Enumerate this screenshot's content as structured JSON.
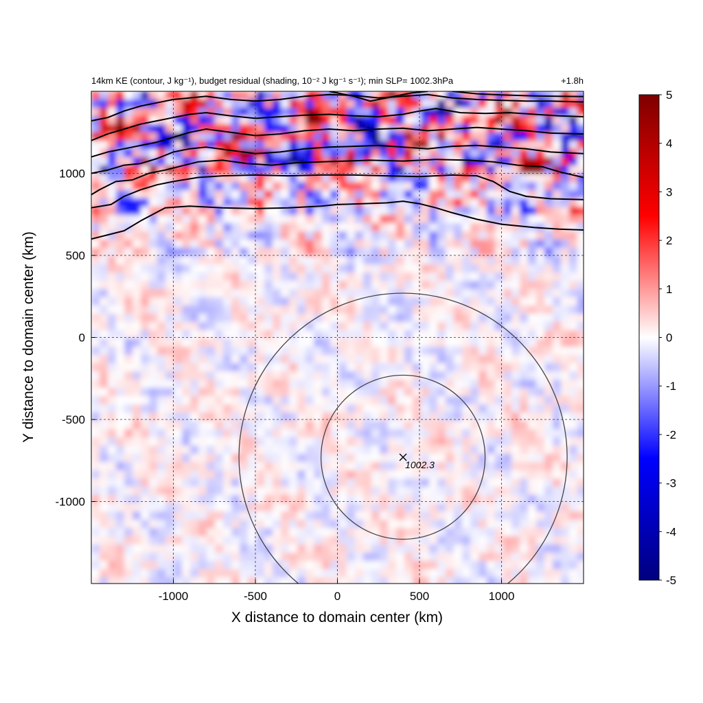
{
  "chart_data": {
    "type": "heatmap",
    "title_left": "14km KE (contour, J kg⁻¹), budget residual (shading, 10⁻² J kg⁻¹ s⁻¹); min SLP= 1002.3hPa",
    "title_right": "+1.8h",
    "xlabel": "X distance to domain center (km)",
    "ylabel": "Y distance to domain center (km)",
    "xlim": [
      -1500,
      1500
    ],
    "ylim": [
      -1500,
      1500
    ],
    "x_ticks": [
      -1000,
      -500,
      0,
      500,
      1000
    ],
    "y_ticks": [
      1000,
      500,
      0,
      -500,
      -1000
    ],
    "grid": true,
    "colorbar": {
      "range": [
        -5,
        5
      ],
      "ticks": [
        5,
        4,
        3,
        2,
        1,
        0,
        -1,
        -2,
        -3,
        -4,
        -5
      ],
      "colors": [
        "#00007f",
        "#0000ff",
        "#ffffff",
        "#ff0000",
        "#7f0000"
      ]
    },
    "center": {
      "x": 400,
      "y": -730,
      "label": "1002.3"
    },
    "circles_radius_km": [
      500,
      1000
    ],
    "ke_contours": [
      [
        [
          -1500,
          600
        ],
        [
          -1300,
          650
        ],
        [
          -1200,
          710
        ],
        [
          -1050,
          790
        ],
        [
          -900,
          800
        ],
        [
          -700,
          790
        ],
        [
          -500,
          785
        ],
        [
          -300,
          790
        ],
        [
          -100,
          800
        ],
        [
          0,
          810
        ],
        [
          150,
          815
        ],
        [
          300,
          820
        ],
        [
          400,
          830
        ],
        [
          500,
          815
        ],
        [
          600,
          790
        ],
        [
          700,
          760
        ],
        [
          850,
          720
        ],
        [
          1000,
          690
        ],
        [
          1200,
          670
        ],
        [
          1350,
          660
        ],
        [
          1500,
          655
        ]
      ],
      [
        [
          -1500,
          790
        ],
        [
          -1380,
          810
        ],
        [
          -1300,
          860
        ],
        [
          -1200,
          900
        ],
        [
          -1100,
          930
        ],
        [
          -1000,
          950
        ],
        [
          -850,
          975
        ],
        [
          -700,
          985
        ],
        [
          -500,
          990
        ],
        [
          -300,
          985
        ],
        [
          -100,
          990
        ],
        [
          100,
          990
        ],
        [
          300,
          985
        ],
        [
          500,
          980
        ],
        [
          700,
          990
        ],
        [
          850,
          985
        ],
        [
          950,
          950
        ],
        [
          1050,
          890
        ],
        [
          1150,
          860
        ],
        [
          1300,
          845
        ],
        [
          1500,
          840
        ]
      ],
      [
        [
          -1500,
          870
        ],
        [
          -1450,
          900
        ],
        [
          -1350,
          950
        ],
        [
          -1250,
          960
        ],
        [
          -1150,
          1000
        ],
        [
          -1050,
          1020
        ],
        [
          -950,
          1045
        ],
        [
          -850,
          1070
        ],
        [
          -700,
          1080
        ],
        [
          -550,
          1060
        ],
        [
          -400,
          1050
        ],
        [
          -250,
          1065
        ],
        [
          -100,
          1070
        ],
        [
          50,
          1075
        ],
        [
          200,
          1080
        ],
        [
          400,
          1075
        ],
        [
          600,
          1085
        ],
        [
          800,
          1080
        ],
        [
          950,
          1070
        ],
        [
          1100,
          1050
        ],
        [
          1250,
          1040
        ],
        [
          1350,
          1010
        ],
        [
          1500,
          975
        ]
      ],
      [
        [
          -1500,
          1000
        ],
        [
          -1400,
          1020
        ],
        [
          -1300,
          1050
        ],
        [
          -1200,
          1060
        ],
        [
          -1100,
          1090
        ],
        [
          -1000,
          1130
        ],
        [
          -900,
          1150
        ],
        [
          -800,
          1160
        ],
        [
          -650,
          1140
        ],
        [
          -500,
          1120
        ],
        [
          -350,
          1130
        ],
        [
          -200,
          1150
        ],
        [
          -50,
          1160
        ],
        [
          100,
          1165
        ],
        [
          250,
          1170
        ],
        [
          400,
          1160
        ],
        [
          550,
          1150
        ],
        [
          700,
          1165
        ],
        [
          850,
          1170
        ],
        [
          1000,
          1160
        ],
        [
          1150,
          1150
        ],
        [
          1300,
          1130
        ],
        [
          1500,
          1120
        ]
      ],
      [
        [
          -1500,
          1100
        ],
        [
          -1400,
          1130
        ],
        [
          -1300,
          1150
        ],
        [
          -1200,
          1170
        ],
        [
          -1100,
          1190
        ],
        [
          -1000,
          1220
        ],
        [
          -900,
          1250
        ],
        [
          -800,
          1270
        ],
        [
          -650,
          1250
        ],
        [
          -500,
          1230
        ],
        [
          -350,
          1240
        ],
        [
          -200,
          1260
        ],
        [
          -50,
          1270
        ],
        [
          100,
          1260
        ],
        [
          250,
          1270
        ],
        [
          400,
          1275
        ],
        [
          550,
          1260
        ],
        [
          700,
          1270
        ],
        [
          850,
          1280
        ],
        [
          1000,
          1270
        ],
        [
          1150,
          1260
        ],
        [
          1300,
          1245
        ],
        [
          1500,
          1240
        ]
      ],
      [
        [
          -1500,
          1200
        ],
        [
          -1400,
          1240
        ],
        [
          -1300,
          1270
        ],
        [
          -1200,
          1300
        ],
        [
          -1100,
          1320
        ],
        [
          -1000,
          1340
        ],
        [
          -900,
          1360
        ],
        [
          -800,
          1370
        ],
        [
          -650,
          1350
        ],
        [
          -500,
          1335
        ],
        [
          -350,
          1345
        ],
        [
          -200,
          1355
        ],
        [
          -50,
          1360
        ],
        [
          100,
          1350
        ],
        [
          250,
          1345
        ],
        [
          400,
          1360
        ],
        [
          500,
          1380
        ],
        [
          600,
          1395
        ],
        [
          750,
          1370
        ],
        [
          900,
          1365
        ],
        [
          1050,
          1370
        ],
        [
          1200,
          1360
        ],
        [
          1350,
          1350
        ],
        [
          1500,
          1345
        ]
      ],
      [
        [
          -1500,
          1320
        ],
        [
          -1400,
          1340
        ],
        [
          -1300,
          1380
        ],
        [
          -1200,
          1410
        ],
        [
          -1100,
          1430
        ],
        [
          -1000,
          1450
        ],
        [
          -900,
          1460
        ],
        [
          -800,
          1470
        ],
        [
          -650,
          1450
        ],
        [
          -500,
          1440
        ],
        [
          -350,
          1450
        ],
        [
          -200,
          1470
        ],
        [
          -50,
          1480
        ],
        [
          100,
          1475
        ],
        [
          250,
          1460
        ],
        [
          400,
          1470
        ],
        [
          550,
          1480
        ],
        [
          700,
          1460
        ],
        [
          850,
          1450
        ],
        [
          1000,
          1445
        ],
        [
          1150,
          1440
        ],
        [
          1300,
          1440
        ],
        [
          1500,
          1435
        ]
      ],
      [
        [
          -50,
          1500
        ],
        [
          100,
          1470
        ],
        [
          200,
          1440
        ],
        [
          300,
          1460
        ],
        [
          450,
          1490
        ],
        [
          550,
          1500
        ]
      ],
      [
        [
          700,
          1500
        ],
        [
          850,
          1485
        ],
        [
          1000,
          1478
        ],
        [
          1200,
          1472
        ],
        [
          1350,
          1470
        ],
        [
          1500,
          1468
        ]
      ]
    ]
  }
}
